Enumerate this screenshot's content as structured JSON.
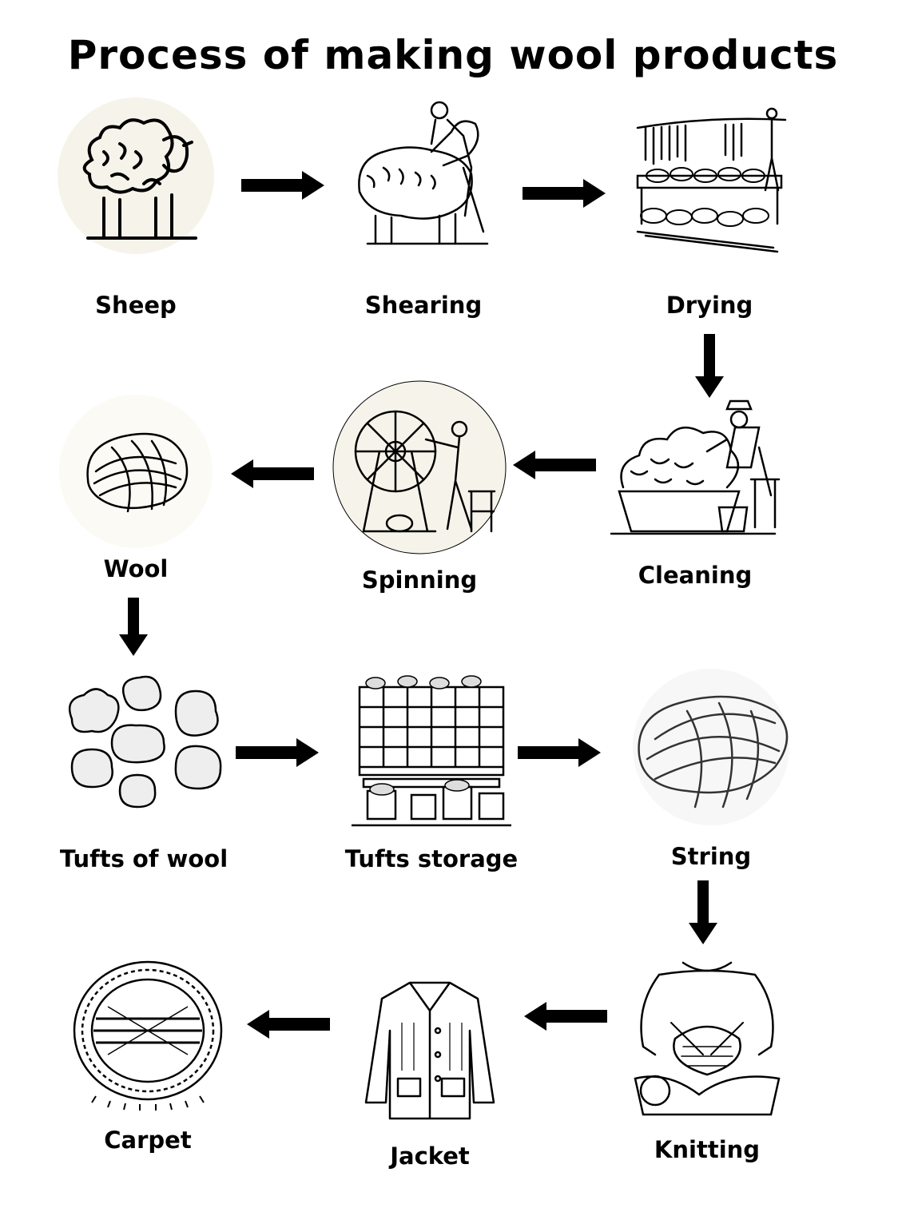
{
  "title": "Process of making wool products",
  "steps": [
    {
      "label": "Sheep",
      "icon": "sheep-icon"
    },
    {
      "label": "Shearing",
      "icon": "shearing-icon"
    },
    {
      "label": "Drying",
      "icon": "drying-icon"
    },
    {
      "label": "Cleaning",
      "icon": "cleaning-icon"
    },
    {
      "label": "Spinning",
      "icon": "spinning-wheel-icon"
    },
    {
      "label": "Wool",
      "icon": "wool-skein-icon"
    },
    {
      "label": "Tufts of wool",
      "icon": "wool-tufts-icon"
    },
    {
      "label": "Tufts storage",
      "icon": "storage-shelves-icon"
    },
    {
      "label": "String",
      "icon": "yarn-ball-icon"
    },
    {
      "label": "Knitting",
      "icon": "knitting-icon"
    },
    {
      "label": "Jacket",
      "icon": "jacket-icon"
    },
    {
      "label": "Carpet",
      "icon": "carpet-icon"
    }
  ],
  "colors": {
    "ink": "#000000",
    "background": "#ffffff",
    "halo": "#f6f4ea"
  }
}
